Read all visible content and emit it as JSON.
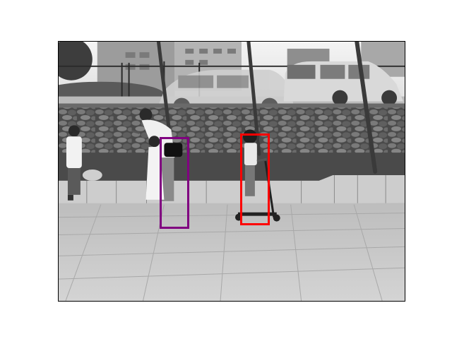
{
  "image": {
    "description_tag": "grayscale-photo-with-detection-boxes"
  },
  "detections": [
    {
      "id": "person-adult-with-bag",
      "color": "#800080"
    },
    {
      "id": "child-on-scooter",
      "color": "#ff0000"
    }
  ]
}
